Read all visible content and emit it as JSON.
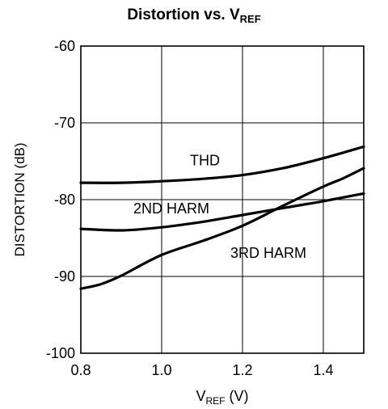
{
  "chart_data": {
    "type": "line",
    "title": {
      "main": "Distortion vs. V",
      "sub": "REF"
    },
    "xlabel": {
      "pre": "V",
      "sub": "REF",
      "post": " (V)"
    },
    "ylabel": "DISTORTION (dB)",
    "xlim": [
      0.8,
      1.5
    ],
    "ylim": [
      -100,
      -60
    ],
    "xticks": [
      0.8,
      1.0,
      1.2,
      1.4
    ],
    "xtick_labels": [
      "0.8",
      "1.0",
      "1.2",
      "1.4"
    ],
    "yticks": [
      -60,
      -70,
      -80,
      -90,
      -100
    ],
    "ytick_labels": [
      "-60",
      "-70",
      "-80",
      "-90",
      "-100"
    ],
    "grid": true,
    "series": [
      {
        "name": "THD",
        "x": [
          0.8,
          0.9,
          1.0,
          1.1,
          1.2,
          1.3,
          1.4,
          1.5
        ],
        "y": [
          -77.8,
          -77.8,
          -77.6,
          -77.3,
          -76.8,
          -75.9,
          -74.6,
          -73.1
        ]
      },
      {
        "name": "2ND HARM",
        "x": [
          0.8,
          0.9,
          1.0,
          1.1,
          1.2,
          1.3,
          1.4,
          1.5
        ],
        "y": [
          -83.8,
          -84.0,
          -83.6,
          -82.9,
          -82.0,
          -81.1,
          -80.2,
          -79.2
        ]
      },
      {
        "name": "3RD HARM",
        "x": [
          0.8,
          0.85,
          0.9,
          1.0,
          1.1,
          1.2,
          1.3,
          1.4,
          1.45,
          1.5
        ],
        "y": [
          -91.6,
          -91.0,
          -89.9,
          -87.2,
          -85.4,
          -83.4,
          -80.8,
          -78.3,
          -77.2,
          -75.9
        ]
      }
    ],
    "annotations": [
      {
        "text": "THD",
        "x": 1.07,
        "y": -75.5
      },
      {
        "text": "2ND HARM",
        "x": 0.93,
        "y": -81.8
      },
      {
        "text": "3RD HARM",
        "x": 1.17,
        "y": -87.6
      }
    ]
  }
}
